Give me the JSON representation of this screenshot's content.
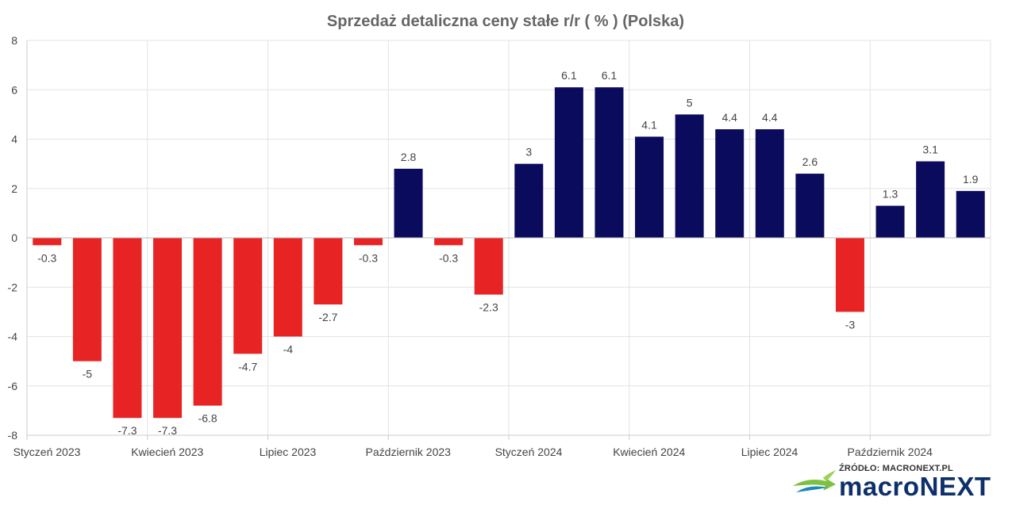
{
  "chart_data": {
    "type": "bar",
    "title": "Sprzedaż detaliczna ceny stałe r/r ( % ) (Polska)",
    "xlabel": "",
    "ylabel": "",
    "ylim": [
      -8,
      8
    ],
    "yticks": [
      -8,
      -6,
      -4,
      -2,
      0,
      2,
      4,
      6,
      8
    ],
    "grid": true,
    "legend": "none",
    "colors": {
      "positive": "#0b0b5e",
      "negative": "#e82323",
      "grid": "#e3e3e3",
      "axis": "#cccccc"
    },
    "categories": [
      "2023-01",
      "2023-02",
      "2023-03",
      "2023-04",
      "2023-05",
      "2023-06",
      "2023-07",
      "2023-08",
      "2023-09",
      "2023-10",
      "2023-11",
      "2023-12",
      "2024-01",
      "2024-02",
      "2024-03",
      "2024-04",
      "2024-05",
      "2024-06",
      "2024-07",
      "2024-08",
      "2024-09",
      "2024-10",
      "2024-11",
      "2024-12"
    ],
    "values": [
      -0.3,
      -5,
      -7.3,
      -7.3,
      -6.8,
      -4.7,
      -4,
      -2.7,
      -0.3,
      2.8,
      -0.3,
      -2.3,
      3,
      6.1,
      6.1,
      4.1,
      5,
      4.4,
      4.4,
      2.6,
      -3,
      1.3,
      3.1,
      1.9
    ],
    "x_tick_labels": [
      {
        "index": 0,
        "label": "Styczeń 2023"
      },
      {
        "index": 3,
        "label": "Kwiecień 2023"
      },
      {
        "index": 6,
        "label": "Lipiec 2023"
      },
      {
        "index": 9,
        "label": "Październik 2023"
      },
      {
        "index": 12,
        "label": "Styczeń 2024"
      },
      {
        "index": 15,
        "label": "Kwiecień 2024"
      },
      {
        "index": 18,
        "label": "Lipiec 2024"
      },
      {
        "index": 21,
        "label": "Październik 2024"
      }
    ]
  },
  "branding": {
    "source_label": "ŹRÓDŁO: MACRONEXT.PL",
    "logo_word_1": "macro",
    "logo_word_2": "NEXT"
  }
}
